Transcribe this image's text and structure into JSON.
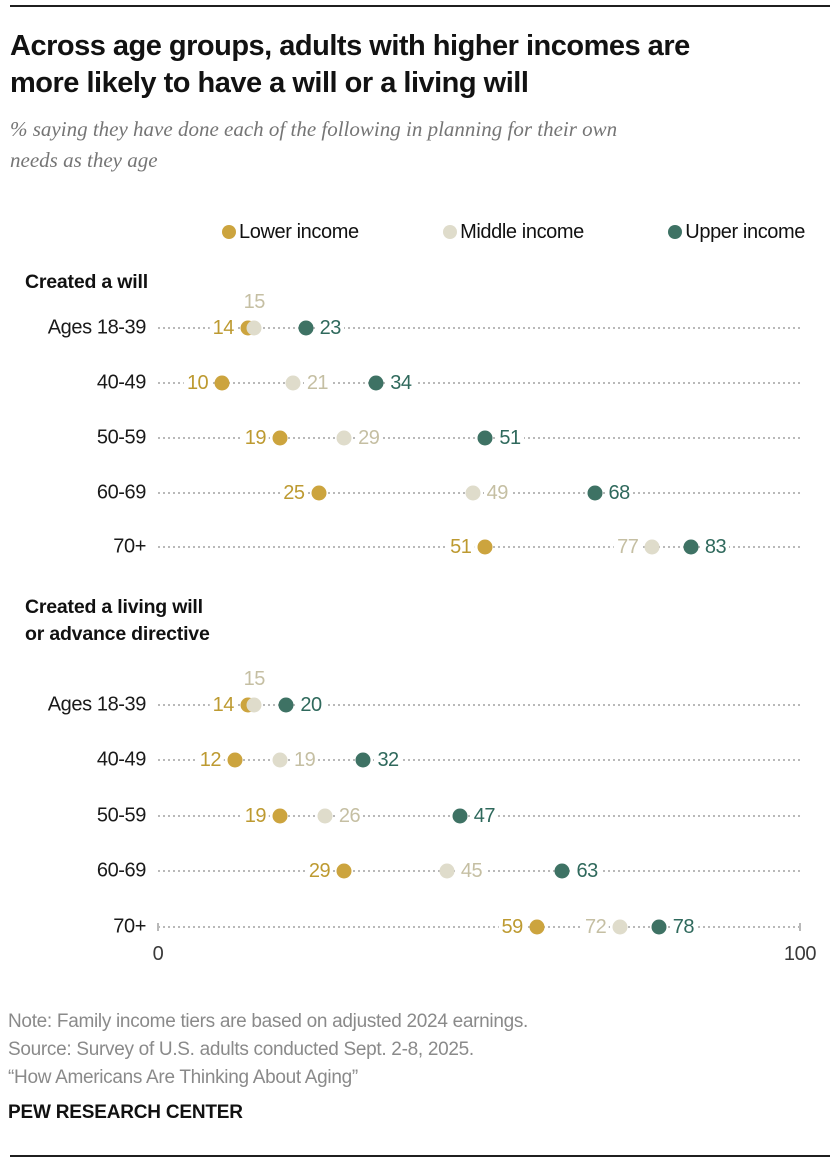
{
  "header": {
    "title_lines": [
      "Across age groups, adults with higher incomes are",
      "more likely to have a will or a living will"
    ],
    "subtitle_lines": [
      "% saying they have done each of the following in planning for their own",
      "needs as they age"
    ]
  },
  "legend": {
    "items": [
      {
        "label": "Lower income",
        "color": "#CCA43E"
      },
      {
        "label": "Middle income",
        "color": "#DFDCCB"
      },
      {
        "label": "Upper income",
        "color": "#3E7264"
      }
    ]
  },
  "chart_data": {
    "type": "scatter",
    "subtype": "horizontal-dot-plot",
    "unit": "percent",
    "axis": {
      "min": 0,
      "max": 100,
      "tick_labels": [
        "0",
        "100"
      ],
      "grid": false
    },
    "series": [
      "Lower income",
      "Middle income",
      "Upper income"
    ],
    "colors": {
      "lower_dot": "#CCA43E",
      "lower_text": "#BD9A31",
      "middle_dot": "#DFDCCB",
      "middle_text": "#C5BFA3",
      "upper_dot": "#3E7264",
      "upper_text": "#2F695C",
      "leader_line": "#b9b9b9"
    },
    "sections": [
      {
        "header_lines": [
          "Created a will"
        ],
        "rows": [
          {
            "label": "Ages 18-39",
            "values": {
              "lower": 14,
              "middle": 15,
              "upper": 23
            },
            "label_positions": {
              "lower": "left",
              "middle": "above",
              "upper": "right"
            },
            "axis_ticks": false
          },
          {
            "label": "40-49",
            "values": {
              "lower": 10,
              "middle": 21,
              "upper": 34
            },
            "label_positions": {
              "lower": "left",
              "middle": "right",
              "upper": "right"
            },
            "axis_ticks": false
          },
          {
            "label": "50-59",
            "values": {
              "lower": 19,
              "middle": 29,
              "upper": 51
            },
            "label_positions": {
              "lower": "left",
              "middle": "right",
              "upper": "right"
            },
            "axis_ticks": false
          },
          {
            "label": "60-69",
            "values": {
              "lower": 25,
              "middle": 49,
              "upper": 68
            },
            "label_positions": {
              "lower": "left",
              "middle": "right",
              "upper": "right"
            },
            "axis_ticks": false
          },
          {
            "label": "70+",
            "values": {
              "lower": 51,
              "middle": 77,
              "upper": 83
            },
            "label_positions": {
              "lower": "left",
              "middle": "left",
              "upper": "right"
            },
            "axis_ticks": false
          }
        ]
      },
      {
        "header_lines": [
          "Created a living will",
          "or advance directive"
        ],
        "rows": [
          {
            "label": "Ages 18-39",
            "values": {
              "lower": 14,
              "middle": 15,
              "upper": 20
            },
            "label_positions": {
              "lower": "left",
              "middle": "above",
              "upper": "right"
            },
            "axis_ticks": false
          },
          {
            "label": "40-49",
            "values": {
              "lower": 12,
              "middle": 19,
              "upper": 32
            },
            "label_positions": {
              "lower": "left",
              "middle": "right",
              "upper": "right"
            },
            "axis_ticks": false
          },
          {
            "label": "50-59",
            "values": {
              "lower": 19,
              "middle": 26,
              "upper": 47
            },
            "label_positions": {
              "lower": "left",
              "middle": "right",
              "upper": "right"
            },
            "axis_ticks": false
          },
          {
            "label": "60-69",
            "values": {
              "lower": 29,
              "middle": 45,
              "upper": 63
            },
            "label_positions": {
              "lower": "left",
              "middle": "right",
              "upper": "right"
            },
            "axis_ticks": false
          },
          {
            "label": "70+",
            "values": {
              "lower": 59,
              "middle": 72,
              "upper": 78
            },
            "label_positions": {
              "lower": "left",
              "middle": "left",
              "upper": "right"
            },
            "axis_ticks": true
          }
        ]
      }
    ]
  },
  "footer": {
    "note": "Note: Family income tiers are based on adjusted 2024 earnings.",
    "source": "Source: Survey of U.S. adults conducted Sept. 2-8, 2025.",
    "citation": "“How Americans Are Thinking About Aging”",
    "brand": "PEW RESEARCH CENTER"
  }
}
